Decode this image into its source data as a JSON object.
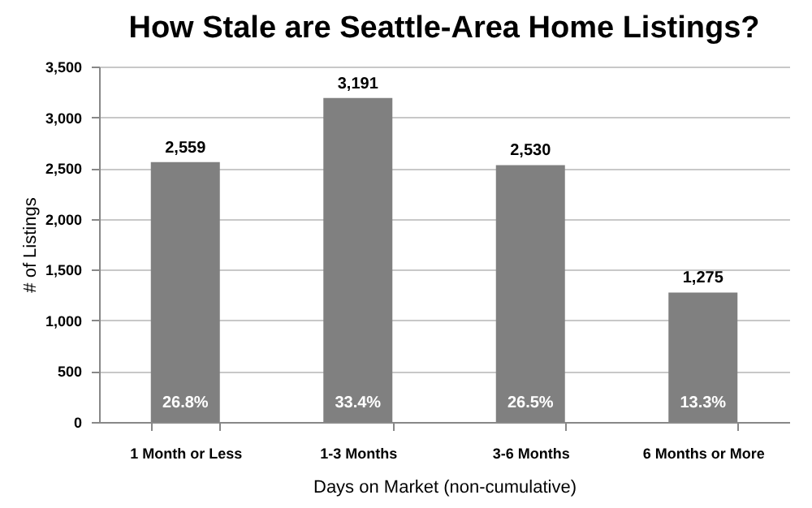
{
  "chart_data": {
    "type": "bar",
    "title": "How Stale are Seattle-Area Home Listings?",
    "xlabel": "Days on Market (non-cumulative)",
    "ylabel": "# of Listings",
    "categories": [
      "1 Month or Less",
      "1-3 Months",
      "3-6 Months",
      "6 Months or More"
    ],
    "values": [
      2559,
      3191,
      2530,
      1275
    ],
    "color": "#808080",
    "ylim": [
      0,
      3500
    ],
    "yticks": [
      0,
      500,
      {
        "value": 1000,
        "label": "1,000"
      },
      {
        "value": 1500,
        "label": "1,500"
      },
      {
        "value": 2000,
        "label": "2,000"
      },
      {
        "value": 2500,
        "label": "2,500"
      },
      {
        "value": 3000,
        "label": "3,000"
      },
      {
        "value": 3500,
        "label": "3,500"
      }
    ],
    "grid": "y",
    "value_labels": [
      "2,559",
      "3,191",
      "2,530",
      "1,275"
    ],
    "annotations": [
      {
        "text": "26.8%",
        "x": "1 Month or Less",
        "y": 0
      },
      {
        "text": "33.4%",
        "x": "1-3 Months",
        "y": 0
      },
      {
        "text": "26.5%",
        "x": "3-6 Months",
        "y": 0
      },
      {
        "text": "13.3%",
        "x": "6 Months or More",
        "y": 0
      }
    ]
  }
}
